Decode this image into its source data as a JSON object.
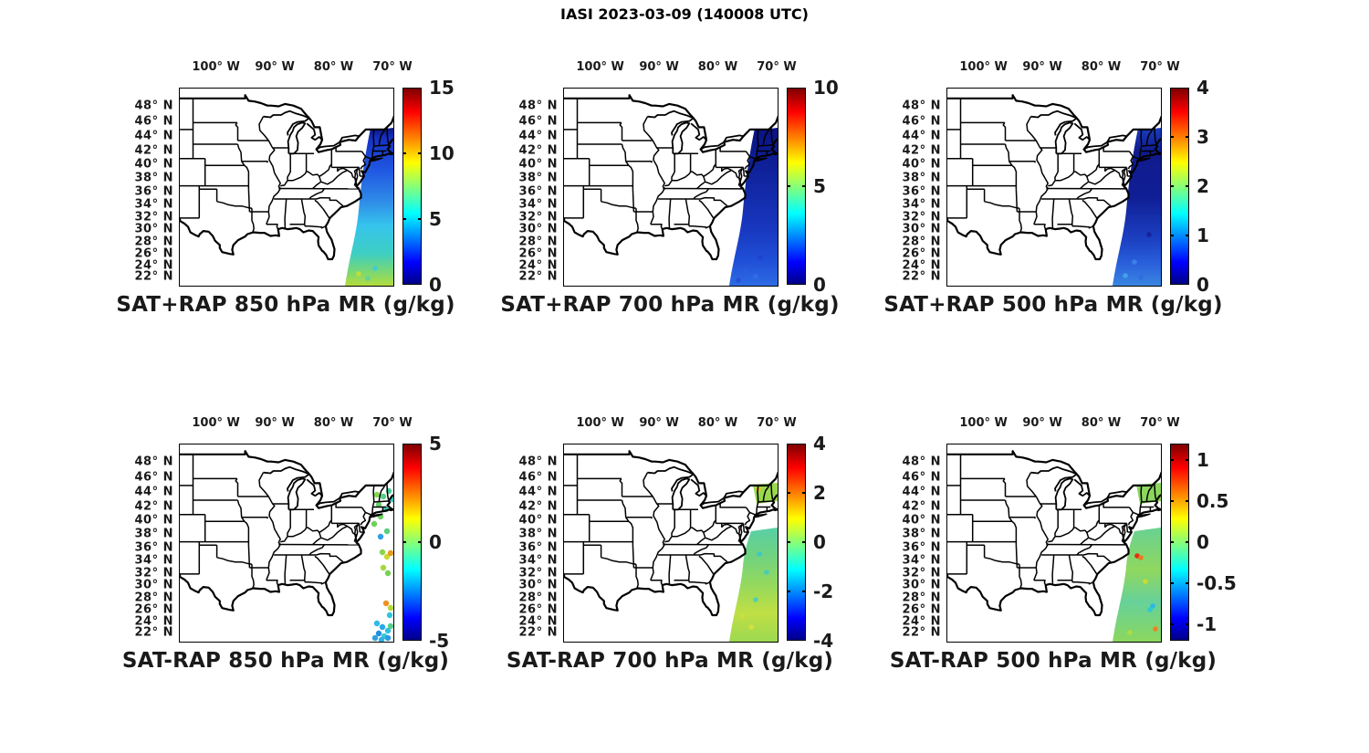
{
  "figure": {
    "title": "IASI 2023-03-09 (140008 UTC)",
    "background": "#ffffff"
  },
  "chart_data": {
    "type": "heatmap",
    "subtype": "geographic satellite swath maps, 2 rows x 3 columns, jet colorbars",
    "projection": "mercator",
    "lon_range_deg_w": [
      106.3,
      70
    ],
    "lat_range_deg_n": [
      20.6,
      50.2
    ],
    "grid": false,
    "colormap": "jet",
    "colormap_css_stops": [
      [
        "0%",
        "#000089"
      ],
      [
        "11%",
        "#0000ff"
      ],
      [
        "36%",
        "#00ffff"
      ],
      [
        "62%",
        "#ffff00"
      ],
      [
        "88%",
        "#ff0000"
      ],
      [
        "100%",
        "#7f0000"
      ]
    ],
    "lon_ticks": [
      {
        "label": "100° W",
        "lon": -100
      },
      {
        "label": "90° W",
        "lon": -90
      },
      {
        "label": "80° W",
        "lon": -80
      },
      {
        "label": "70° W",
        "lon": -70
      }
    ],
    "lat_ticks": [
      {
        "label": "48° N",
        "lat": 48
      },
      {
        "label": "46° N",
        "lat": 46
      },
      {
        "label": "44° N",
        "lat": 44
      },
      {
        "label": "42° N",
        "lat": 42
      },
      {
        "label": "40° N",
        "lat": 40
      },
      {
        "label": "38° N",
        "lat": 38
      },
      {
        "label": "36° N",
        "lat": 36
      },
      {
        "label": "34° N",
        "lat": 34
      },
      {
        "label": "32° N",
        "lat": 32
      },
      {
        "label": "30° N",
        "lat": 30
      },
      {
        "label": "28° N",
        "lat": 28
      },
      {
        "label": "26° N",
        "lat": 26
      },
      {
        "label": "24° N",
        "lat": 24
      },
      {
        "label": "22° N",
        "lat": 22
      }
    ],
    "panels": [
      {
        "id": "sat-plus-rap-850",
        "title": "SAT+RAP 850 hPa MR (g/kg)",
        "row": 0,
        "col": 0,
        "colorbar": {
          "min": 0,
          "max": 15,
          "ticks": [
            {
              "label": "15",
              "value": 15
            },
            {
              "label": "10",
              "value": 10
            },
            {
              "label": "5",
              "value": 5
            },
            {
              "label": "0",
              "value": 0
            }
          ]
        },
        "swath": {
          "mode": "band-full",
          "gradient": [
            {
              "o": 0,
              "c": "#0b1076"
            },
            {
              "o": 0.07,
              "c": "#1530c0"
            },
            {
              "o": 0.27,
              "c": "#2057e2"
            },
            {
              "o": 0.47,
              "c": "#2f8ce8"
            },
            {
              "o": 0.62,
              "c": "#35c4ec"
            },
            {
              "o": 0.8,
              "c": "#3ecfc2"
            },
            {
              "o": 0.92,
              "c": "#7ed86e"
            },
            {
              "o": 1,
              "c": "#b4dc3c"
            }
          ],
          "dots": [
            [
              196,
              203,
              "#bede3a"
            ],
            [
              206,
              208,
              "#66d296"
            ],
            [
              214,
              197,
              "#42cbd0"
            ],
            [
              188,
              211,
              "#a8d84a"
            ]
          ]
        }
      },
      {
        "id": "sat-plus-rap-700",
        "title": "SAT+RAP 700 hPa MR (g/kg)",
        "row": 0,
        "col": 1,
        "colorbar": {
          "min": 0,
          "max": 10,
          "ticks": [
            {
              "label": "10",
              "value": 10
            },
            {
              "label": "5",
              "value": 5
            },
            {
              "label": "0",
              "value": 0
            }
          ]
        },
        "swath": {
          "mode": "band-full",
          "gradient": [
            {
              "o": 0,
              "c": "#0a1280"
            },
            {
              "o": 0.35,
              "c": "#1126a2"
            },
            {
              "o": 0.65,
              "c": "#1838c0"
            },
            {
              "o": 0.85,
              "c": "#2050d8"
            },
            {
              "o": 1,
              "c": "#2e6ce4"
            }
          ],
          "dots": [
            [
              200,
              200,
              "#2a5ce0"
            ],
            [
              210,
              206,
              "#2f6ce8"
            ],
            [
              191,
              210,
              "#2450d4"
            ],
            [
              215,
              185,
              "#1f44cc"
            ]
          ]
        }
      },
      {
        "id": "sat-plus-rap-500",
        "title": "SAT+RAP 500 hPa MR (g/kg)",
        "row": 0,
        "col": 2,
        "colorbar": {
          "min": 0,
          "max": 4,
          "ticks": [
            {
              "label": "4",
              "value": 4
            },
            {
              "label": "3",
              "value": 3
            },
            {
              "label": "2",
              "value": 2
            },
            {
              "label": "1",
              "value": 1
            },
            {
              "label": "0",
              "value": 0
            }
          ]
        },
        "swath": {
          "mode": "band-full",
          "gradient": [
            {
              "o": 0,
              "c": "#1a3ec0"
            },
            {
              "o": 0.16,
              "c": "#101a8c"
            },
            {
              "o": 0.45,
              "c": "#101f96"
            },
            {
              "o": 0.72,
              "c": "#1c42c4"
            },
            {
              "o": 0.87,
              "c": "#2a62dc"
            },
            {
              "o": 1,
              "c": "#3a86e0"
            }
          ],
          "dots": [
            [
              205,
              190,
              "#3a80e8"
            ],
            [
              195,
              205,
              "#44a0e8"
            ],
            [
              212,
              207,
              "#2f6ce0"
            ],
            [
              221,
              160,
              "#16249c"
            ]
          ]
        }
      },
      {
        "id": "sat-minus-rap-850",
        "title": "SAT-RAP 850 hPa MR (g/kg)",
        "row": 1,
        "col": 0,
        "colorbar": {
          "min": -5,
          "max": 5,
          "ticks": [
            {
              "label": "5",
              "value": 5
            },
            {
              "label": "0",
              "value": 0
            },
            {
              "label": "-5",
              "value": -5
            }
          ]
        },
        "swath": {
          "mode": "dots",
          "gradient": [],
          "dots": [
            [
              216,
              55,
              "#86d74e"
            ],
            [
              223,
              57,
              "#55cf86"
            ],
            [
              229,
              51,
              "#49ce9f"
            ],
            [
              233,
              60,
              "#37c8c8"
            ],
            [
              218,
              66,
              "#63d164"
            ],
            [
              226,
              71,
              "#3fcbb4"
            ],
            [
              220,
              79,
              "#66d25e"
            ],
            [
              213,
              87,
              "#6ed158"
            ],
            [
              227,
              95,
              "#58cf7e"
            ],
            [
              220,
              101,
              "#2e9fe8"
            ],
            [
              222,
              118,
              "#8ad34f"
            ],
            [
              227,
              123,
              "#ccd92e"
            ],
            [
              231,
              119,
              "#e89a1e"
            ],
            [
              223,
              135,
              "#a8d63e"
            ],
            [
              228,
              141,
              "#74d155"
            ],
            [
              226,
              174,
              "#f09020"
            ],
            [
              231,
              179,
              "#b8d838"
            ],
            [
              230,
              187,
              "#2fc6e0"
            ],
            [
              216,
              196,
              "#2fb9e8"
            ],
            [
              222,
              200,
              "#28a8e8"
            ],
            [
              228,
              204,
              "#30c0e0"
            ],
            [
              218,
              207,
              "#2090e0"
            ],
            [
              224,
              210,
              "#38c8d8"
            ],
            [
              231,
              199,
              "#58cf8a"
            ],
            [
              214,
              212,
              "#2f9fe0"
            ],
            [
              221,
              214,
              "#30b0e8"
            ],
            [
              228,
              212,
              "#2a9ce4"
            ]
          ]
        }
      },
      {
        "id": "sat-minus-rap-700",
        "title": "SAT-RAP 700 hPa MR (g/kg)",
        "row": 1,
        "col": 1,
        "colorbar": {
          "min": -4,
          "max": 4,
          "ticks": [
            {
              "label": "4",
              "value": 4
            },
            {
              "label": "2",
              "value": 2
            },
            {
              "label": "0",
              "value": 0
            },
            {
              "label": "-2",
              "value": -2
            },
            {
              "label": "-4",
              "value": -4
            }
          ]
        },
        "swath": {
          "mode": "band-split",
          "patch": "#9ad94e",
          "gradient": [
            {
              "o": 0,
              "c": "#7cd857"
            },
            {
              "o": 0.25,
              "c": "#54cfae"
            },
            {
              "o": 0.45,
              "c": "#6ed282"
            },
            {
              "o": 0.65,
              "c": "#96d95c"
            },
            {
              "o": 0.82,
              "c": "#c0df44"
            },
            {
              "o": 1,
              "c": "#9cd951"
            }
          ],
          "dots": [
            [
              214,
              120,
              "#40c8c0"
            ],
            [
              222,
              140,
              "#48ccb8"
            ],
            [
              210,
              170,
              "#50d0b0"
            ],
            [
              213,
              49,
              "#e8c020"
            ],
            [
              205,
              200,
              "#d4e23c"
            ],
            [
              196,
              188,
              "#c8e040"
            ]
          ]
        }
      },
      {
        "id": "sat-minus-rap-500",
        "title": "SAT-RAP 500 hPa MR (g/kg)",
        "row": 1,
        "col": 2,
        "colorbar": {
          "min": -1.2,
          "max": 1.2,
          "ticks": [
            {
              "label": "1",
              "value": 1
            },
            {
              "label": "0.5",
              "value": 0.5
            },
            {
              "label": "0",
              "value": 0
            },
            {
              "label": "-0.5",
              "value": -0.5
            },
            {
              "label": "-1",
              "value": -1
            }
          ]
        },
        "swath": {
          "mode": "band-split",
          "patch": "#8cd75e",
          "gradient": [
            {
              "o": 0,
              "c": "#86d966"
            },
            {
              "o": 0.3,
              "c": "#6ad28e"
            },
            {
              "o": 0.55,
              "c": "#90d75f"
            },
            {
              "o": 0.75,
              "c": "#66d19a"
            },
            {
              "o": 1,
              "c": "#8cd75e"
            }
          ],
          "dots": [
            [
              208,
              122,
              "#e03010"
            ],
            [
              212,
              124,
              "#f07820"
            ],
            [
              225,
              177,
              "#28b8e8"
            ],
            [
              222,
              181,
              "#30c8d0"
            ],
            [
              228,
              202,
              "#f08020"
            ],
            [
              217,
              150,
              "#c8dc30"
            ],
            [
              200,
              206,
              "#b0dc40"
            ]
          ]
        }
      }
    ]
  }
}
